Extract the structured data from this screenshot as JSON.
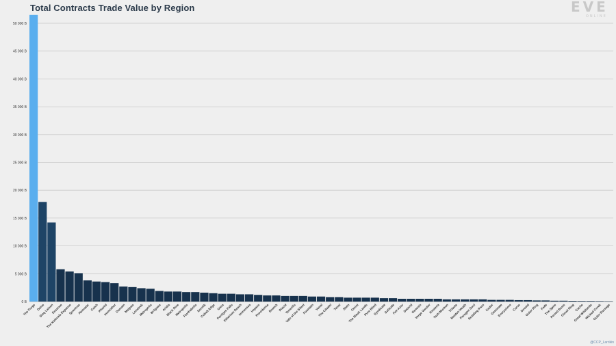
{
  "header": {
    "title": "Total Contracts Trade Value by Region"
  },
  "logo": {
    "text": "EVE",
    "subtext": "ONLINE"
  },
  "credit": {
    "text": "@CCP_Larrikin"
  },
  "colors": {
    "highlight": "#5aaeee",
    "primary": "#1e4466",
    "dark": "#17324d",
    "grid": "#c9c9c9",
    "background": "#efefef"
  },
  "chart_data": {
    "type": "bar",
    "title": "Total Contracts Trade Value by Region",
    "xlabel": "",
    "ylabel": "",
    "ylim": [
      0,
      51000
    ],
    "yticks": [
      0,
      5000,
      10000,
      15000,
      20000,
      25000,
      30000,
      35000,
      40000,
      45000,
      50000
    ],
    "ytick_labels": [
      "0 B",
      "5 000 B",
      "10 000 B",
      "15 000 B",
      "20 000 B",
      "25 000 B",
      "30 000 B",
      "35 000 B",
      "40 000 B",
      "45 000 B",
      "50 000 B"
    ],
    "grid": true,
    "highlight": "The Forge",
    "categories": [
      "The Forge",
      "Delve",
      "Sinq Laison",
      "Essence",
      "The Kalevala Expanse",
      "Querious",
      "Heimatar",
      "Catch",
      "Khanid",
      "Insmother",
      "Domain",
      "Malpais",
      "Lonetrek",
      "Metropolis",
      "W-Space",
      "Aridia",
      "Black Rise",
      "Metropolis",
      "Feythabolis",
      "Derelik",
      "Cobalt Edge",
      "Oasa",
      "Perrigen Falls",
      "Etherium Reach",
      "Immensea",
      "Impass",
      "Providence",
      "Branch",
      "Placid",
      "Tenerifis",
      "Vale of the Silent",
      "Fountain",
      "Venal",
      "The Citadel",
      "Tenal",
      "Stain",
      "Omist",
      "The Bleak Lands",
      "Pure Blind",
      "Syndicate",
      "Solitude",
      "Kor-Azor",
      "Detorid",
      "Genesis",
      "Verge Vendor",
      "Esoteria",
      "Tash-Murkon",
      "Tribute",
      "Molden Heath",
      "Paragon Soul",
      "Scalding Pass",
      "Kador",
      "Geminate",
      "Everyshore",
      "Curse",
      "Devoid",
      "Outer Ring",
      "Fade",
      "The Spire",
      "Period Basis",
      "Cloud Ring",
      "Cache",
      "Great Wildlands",
      "Wicked Creek",
      "Outer Passage"
    ],
    "values": [
      51500,
      17900,
      14200,
      5800,
      5400,
      5100,
      3800,
      3600,
      3500,
      3300,
      2700,
      2600,
      2400,
      2300,
      1900,
      1800,
      1800,
      1700,
      1700,
      1600,
      1500,
      1400,
      1400,
      1300,
      1300,
      1200,
      1100,
      1100,
      1000,
      1000,
      1000,
      900,
      900,
      800,
      800,
      700,
      700,
      700,
      700,
      600,
      600,
      500,
      500,
      500,
      500,
      500,
      400,
      400,
      400,
      400,
      400,
      300,
      300,
      300,
      250,
      250,
      200,
      200,
      150,
      150,
      120,
      100,
      100,
      80,
      50
    ]
  }
}
